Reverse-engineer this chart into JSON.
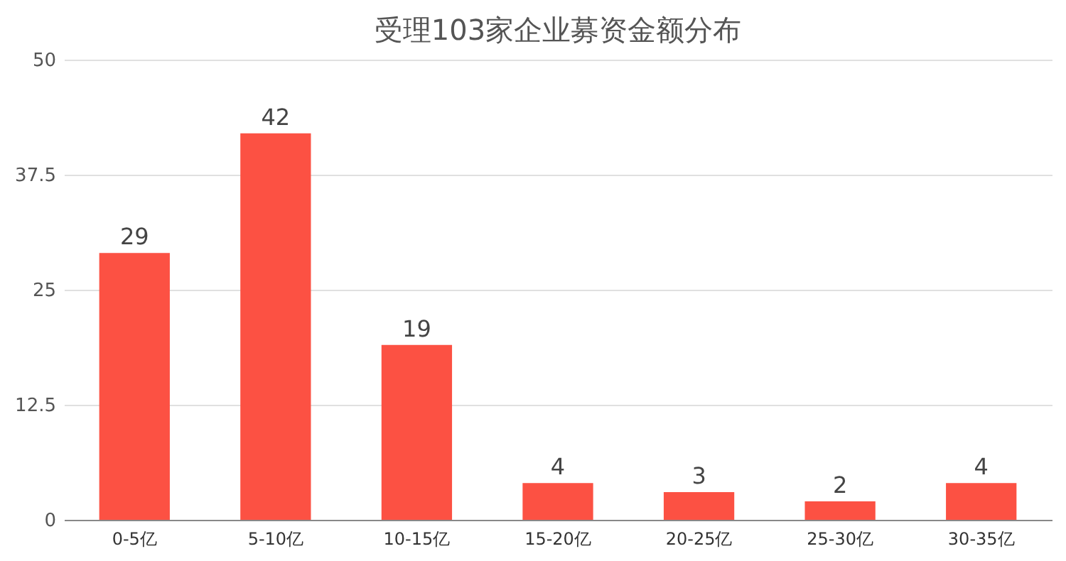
{
  "chart_data": {
    "type": "bar",
    "title": "受理103家企业募资金额分布",
    "categories": [
      "0-5亿",
      "5-10亿",
      "10-15亿",
      "15-20亿",
      "20-25亿",
      "25-30亿",
      "30-35亿"
    ],
    "values": [
      29,
      42,
      19,
      4,
      3,
      2,
      4
    ],
    "color": "#fc5143",
    "ylim": [
      0,
      50
    ],
    "yticks": [
      0,
      12.5,
      25,
      37.5,
      50
    ],
    "grid": "y",
    "data_labels": true
  }
}
